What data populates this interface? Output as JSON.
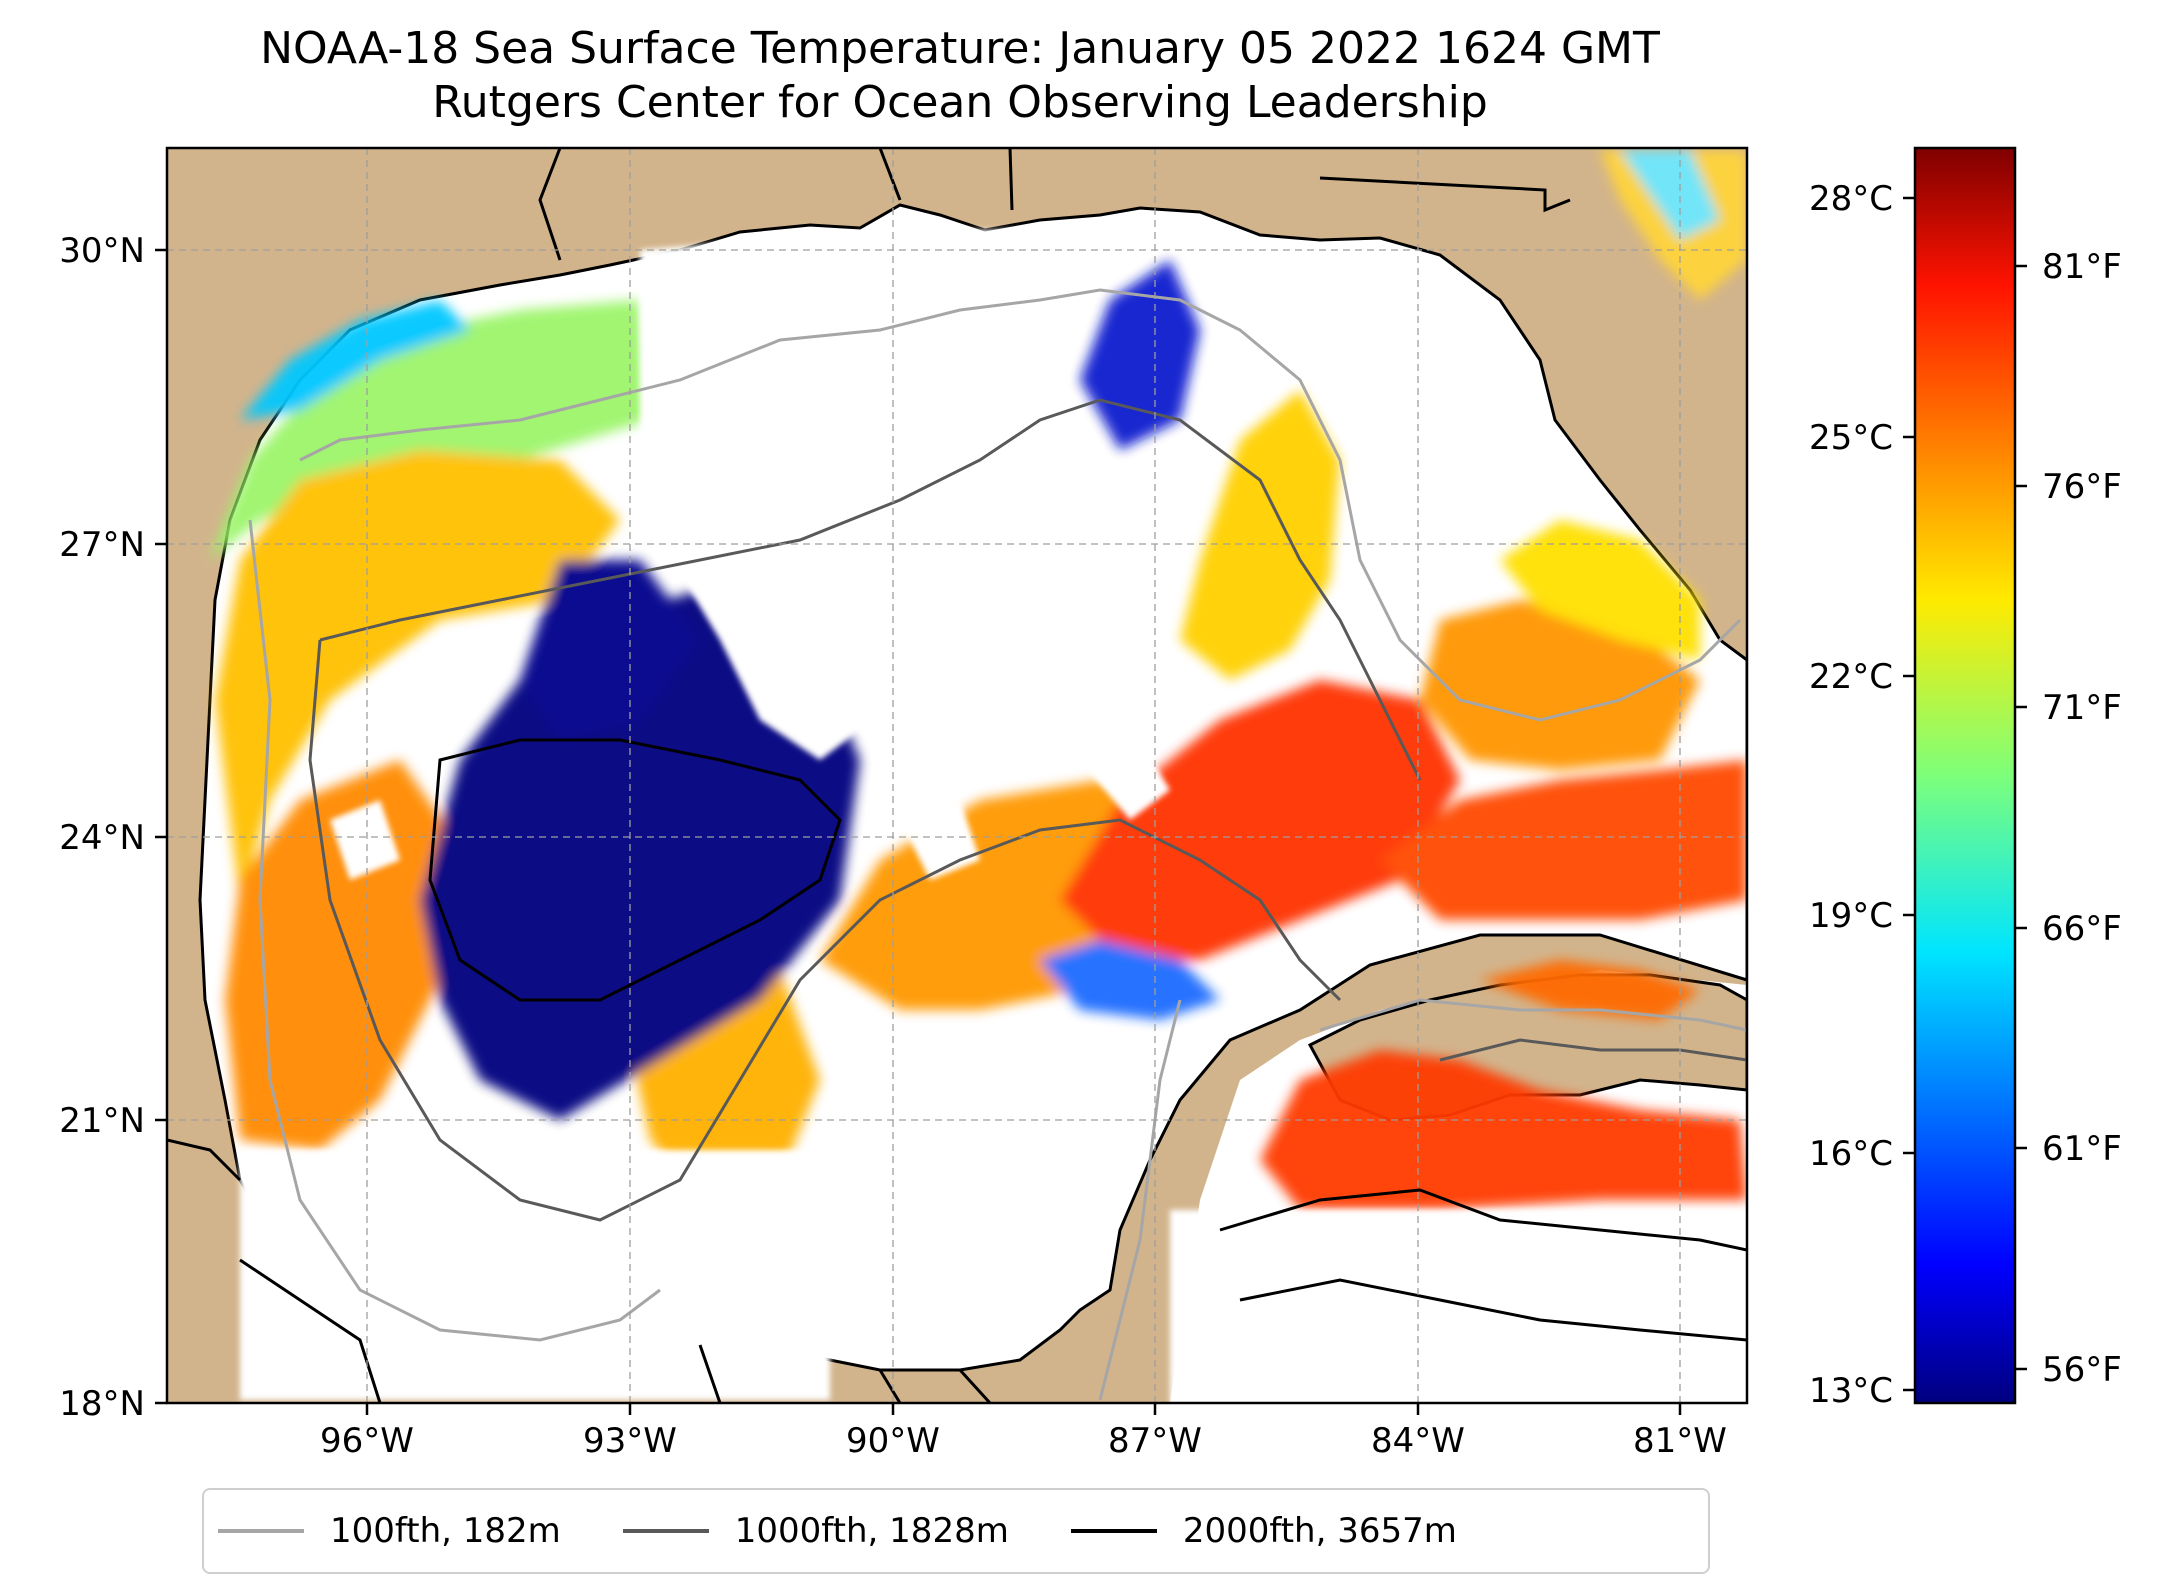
{
  "title_line1": "NOAA-18 Sea Surface Temperature: January 05 2022 1624 GMT",
  "title_line2": "Rutgers Center for Ocean Observing Leadership",
  "map": {
    "lon_range": [
      -98.3,
      -80.2
    ],
    "lat_range": [
      18.0,
      31.0
    ],
    "lat_labels": [
      "30°N",
      "27°N",
      "24°N",
      "21°N",
      "18°N"
    ],
    "lon_labels": [
      "96°W",
      "93°W",
      "90°W",
      "87°W",
      "84°W",
      "81°W"
    ],
    "land_color": "#d2b48c",
    "grid": true,
    "colormap": "jet"
  },
  "colorbar": {
    "celsius_labels": [
      "28°C",
      "25°C",
      "22°C",
      "19°C",
      "16°C",
      "13°C"
    ],
    "fahrenheit_labels": [
      "81°F",
      "76°F",
      "71°F",
      "66°F",
      "61°F",
      "56°F"
    ],
    "range_celsius": [
      12.8,
      28.8
    ]
  },
  "legend": [
    {
      "label": "100fth, 182m",
      "color": "#a6a6a6"
    },
    {
      "label": "1000fth, 1828m",
      "color": "#595959"
    },
    {
      "label": "2000fth, 3657m",
      "color": "#000000"
    }
  ]
}
